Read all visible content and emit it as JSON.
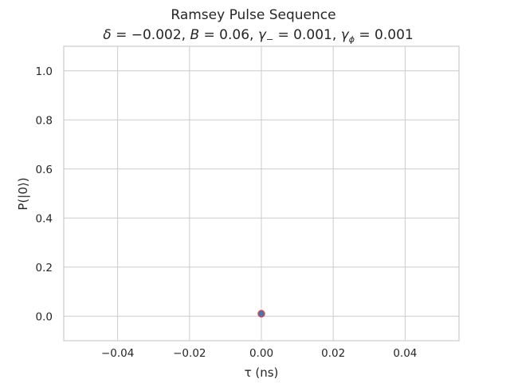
{
  "chart_data": {
    "type": "scatter",
    "title": "Ramsey Pulse Sequence",
    "subtitle_parts": {
      "delta_sym": "δ",
      "delta_eq": " = −0.002, ",
      "b_sym": "B",
      "b_eq": " = 0.06, ",
      "gm_sym": "γ",
      "gm_sub": "−",
      "gm_eq": " = 0.001, ",
      "gp_sym": "γ",
      "gp_sub": "ϕ",
      "gp_eq": " = 0.001"
    },
    "xlabel": "τ (ns)",
    "ylabel": "P(|0⟩)",
    "xlim": [
      -0.055,
      0.055
    ],
    "ylim": [
      -0.1,
      1.1
    ],
    "xticks": [
      -0.04,
      -0.02,
      0.0,
      0.02,
      0.04
    ],
    "xtick_labels": [
      "−0.04",
      "−0.02",
      "0.00",
      "0.02",
      "0.04"
    ],
    "yticks": [
      0.0,
      0.2,
      0.4,
      0.6,
      0.8,
      1.0
    ],
    "ytick_labels": [
      "0.0",
      "0.2",
      "0.4",
      "0.6",
      "0.8",
      "1.0"
    ],
    "grid": true,
    "series": [
      {
        "x": [
          0.0
        ],
        "y": [
          0.01
        ],
        "color": "#4c72b0",
        "edge_color": "#c44e52"
      }
    ]
  }
}
